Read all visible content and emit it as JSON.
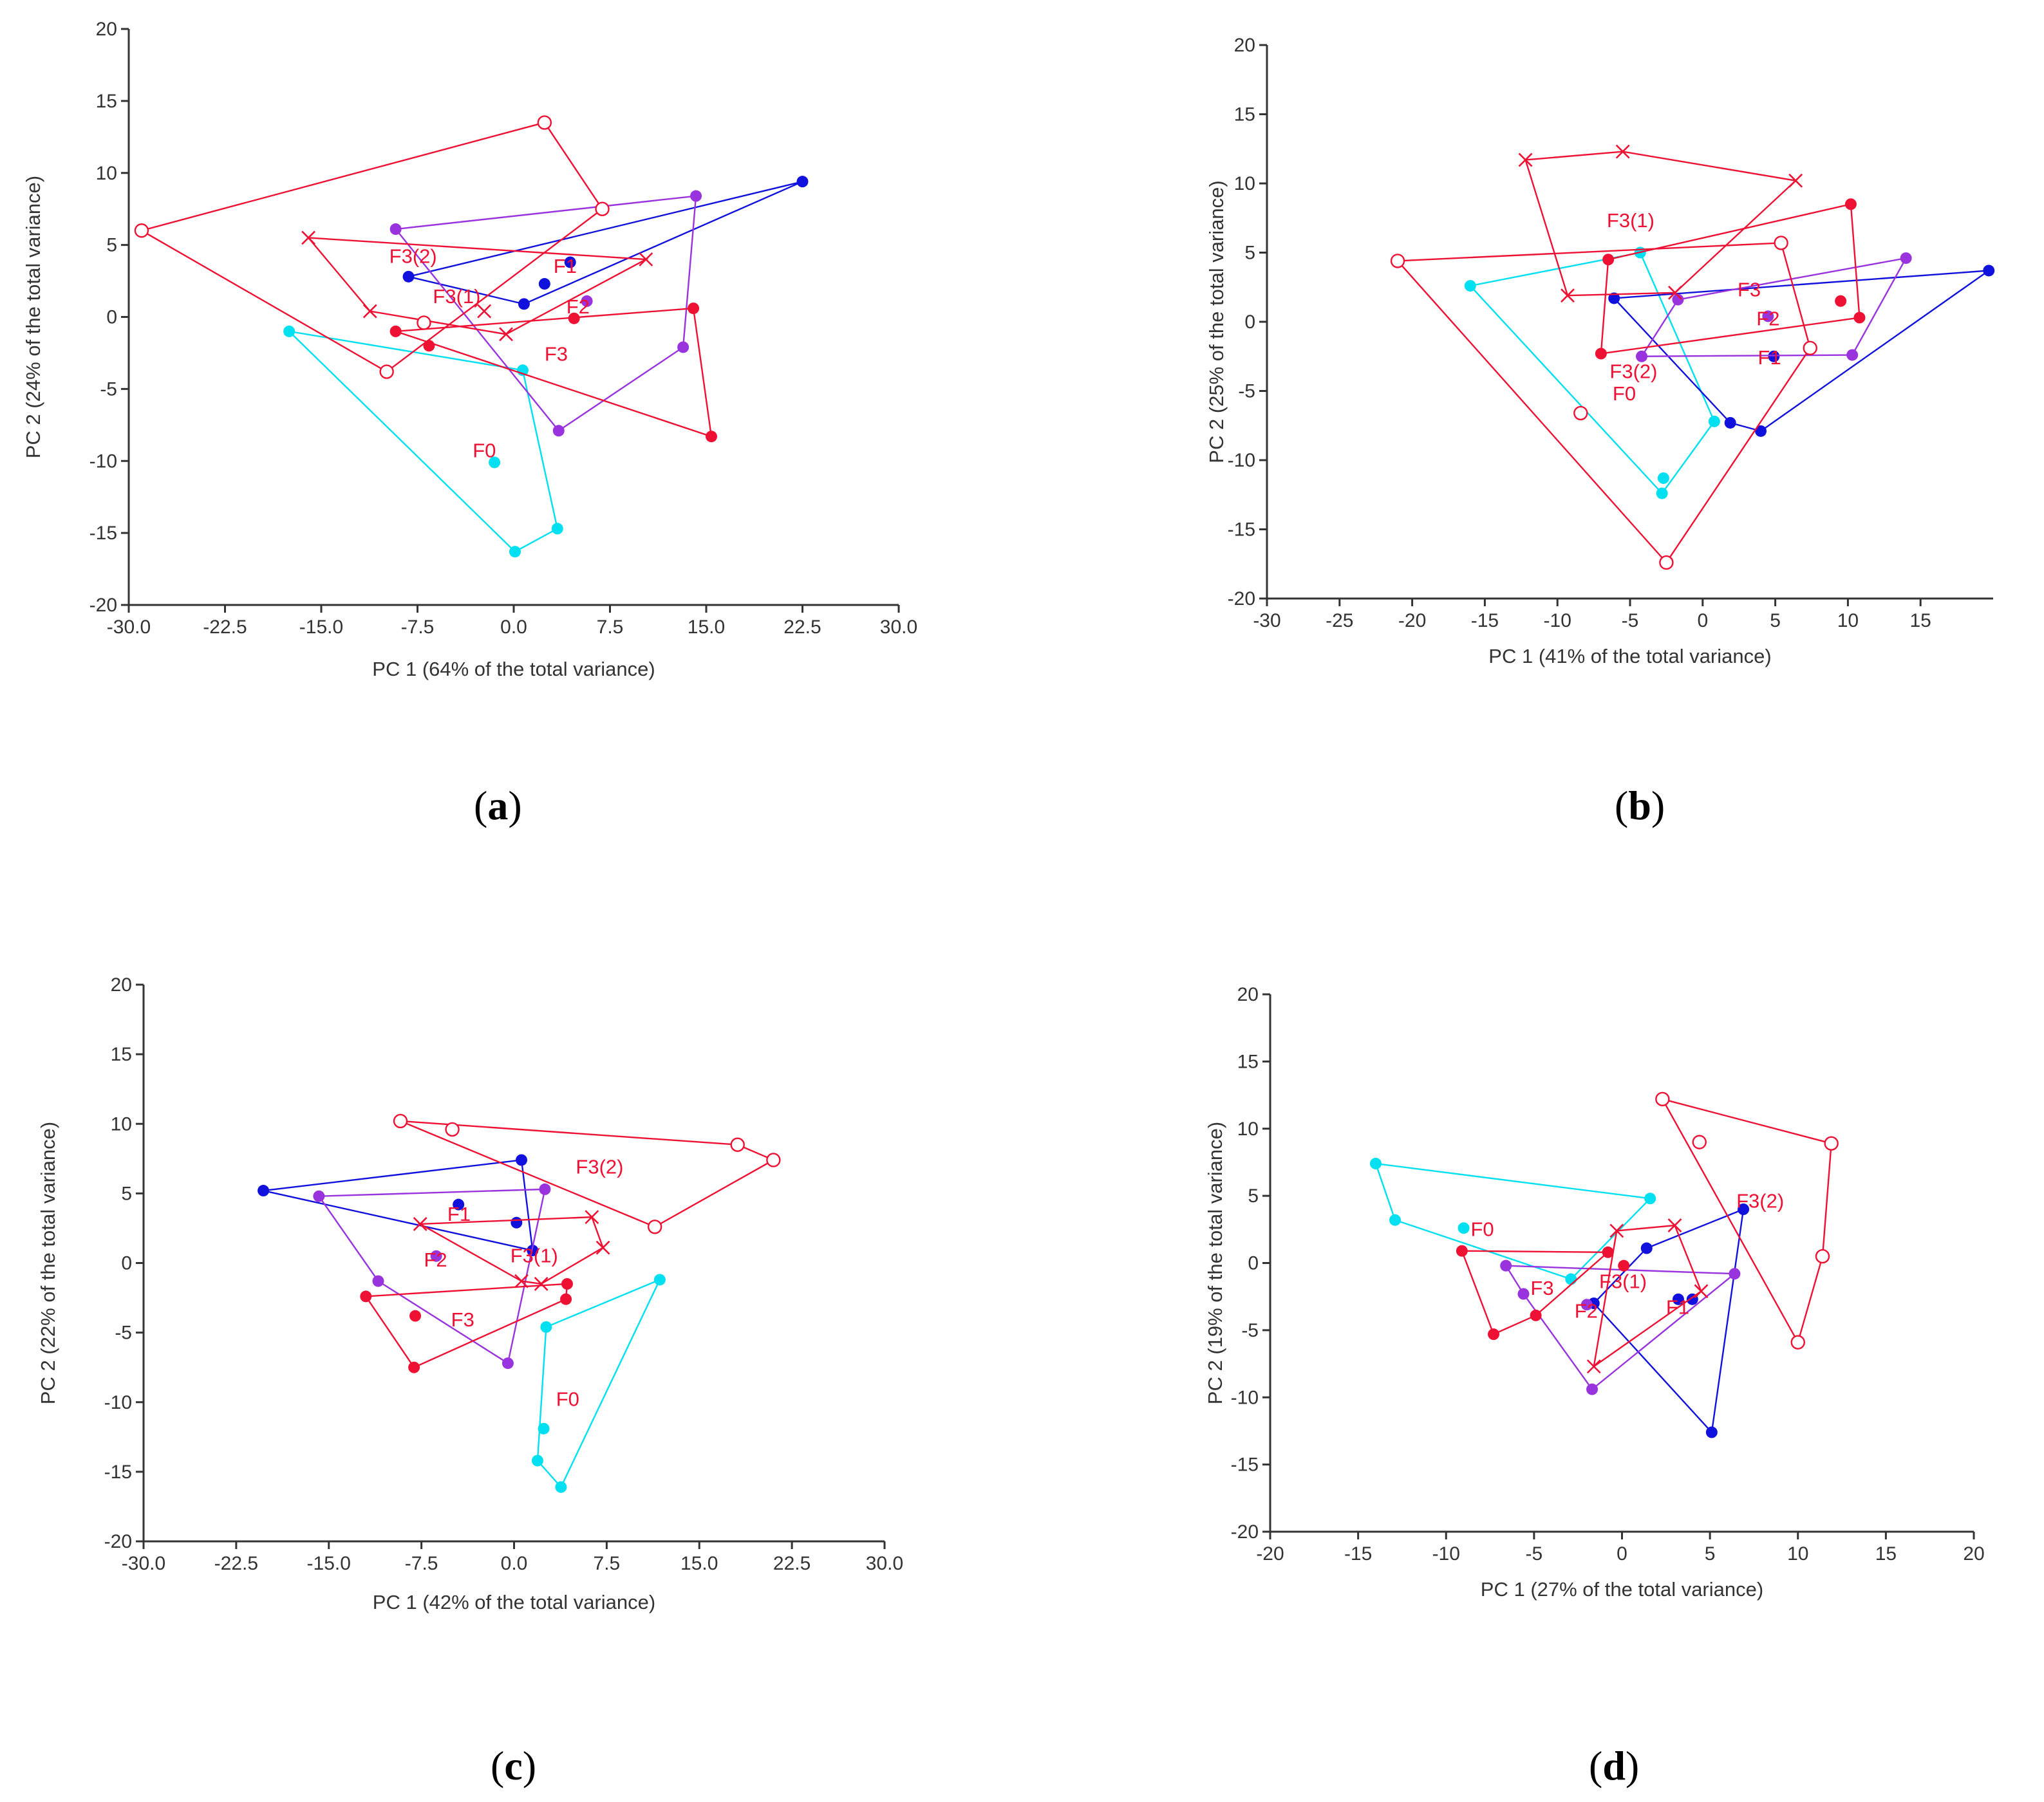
{
  "colors": {
    "cyan": "#00e0f0",
    "red": "#ee1133",
    "purple": "#9933dd",
    "blue": "#1111dd",
    "axis": "#333333"
  },
  "chart_data": [
    {
      "id": "a",
      "type": "scatter",
      "caption_letter": "a",
      "xlabel": "PC 1 (64% of the total variance)",
      "ylabel": "PC 2 (24% of the total variance)",
      "xlim": [
        -30,
        30
      ],
      "ylim": [
        -20,
        20
      ],
      "xticks": [
        -30,
        -22.5,
        -15,
        -7.5,
        0,
        7.5,
        15,
        22.5,
        30
      ],
      "xtick_labels": [
        "-30.0",
        "-22.5",
        "-15.0",
        "-7.5",
        "0.0",
        "7.5",
        "15.0",
        "22.5",
        "30.0"
      ],
      "yticks": [
        -20,
        -15,
        -10,
        -5,
        0,
        5,
        10,
        15,
        20
      ],
      "ytick_labels": [
        "-20",
        "-15",
        "-10",
        "-5",
        "0",
        "5",
        "10",
        "15",
        "20"
      ],
      "series": [
        {
          "name": "F0",
          "color": "cyan",
          "marker": "dot",
          "hull": [
            [
              -17.5,
              -1
            ],
            [
              0.7,
              -3.7
            ],
            [
              3.4,
              -14.7
            ],
            [
              0.1,
              -16.3
            ]
          ],
          "extra": [
            [
              -1.5,
              -10.1
            ]
          ]
        },
        {
          "name": "F1",
          "color": "blue",
          "marker": "dot",
          "hull": [
            [
              -8.2,
              2.8
            ],
            [
              0.8,
              0.9
            ],
            [
              22.5,
              9.4
            ]
          ],
          "extra": [
            [
              2.4,
              2.3
            ],
            [
              4.4,
              3.8
            ]
          ]
        },
        {
          "name": "F2",
          "color": "purple",
          "marker": "dot",
          "hull": [
            [
              -9.2,
              6.1
            ],
            [
              14.2,
              8.4
            ],
            [
              13.2,
              -2.1
            ],
            [
              3.5,
              -7.9
            ]
          ],
          "extra": [
            [
              5.7,
              1.1
            ]
          ]
        },
        {
          "name": "F3",
          "color": "red",
          "marker": "dot",
          "hull": [
            [
              -9.2,
              -1
            ],
            [
              14,
              0.6
            ],
            [
              15.4,
              -8.3
            ]
          ],
          "extra": [
            [
              -6.6,
              -2
            ],
            [
              4.7,
              -0.1
            ]
          ]
        },
        {
          "name": "F3(1)",
          "color": "red",
          "marker": "x",
          "hull": [
            [
              -16,
              5.5
            ],
            [
              10.3,
              4
            ],
            [
              -0.6,
              -1.2
            ],
            [
              -11.2,
              0.4
            ]
          ],
          "extra": [
            [
              -2.3,
              0.4
            ]
          ]
        },
        {
          "name": "F3(2)",
          "color": "red",
          "marker": "o",
          "hull": [
            [
              -29,
              6
            ],
            [
              2.4,
              13.5
            ],
            [
              6.9,
              7.5
            ],
            [
              -9.9,
              -3.8
            ]
          ],
          "extra": [
            [
              -7,
              -0.4
            ]
          ]
        }
      ],
      "labels": [
        {
          "text": "F0",
          "at": [
            -3.2,
            -9.3
          ]
        },
        {
          "text": "F1",
          "at": [
            3.1,
            3.5
          ]
        },
        {
          "text": "F2",
          "at": [
            4.1,
            0.7
          ]
        },
        {
          "text": "F3",
          "at": [
            2.4,
            -2.6
          ]
        },
        {
          "text": "F3(1)",
          "at": [
            -6.3,
            1.4
          ]
        },
        {
          "text": "F3(2)",
          "at": [
            -9.7,
            4.2
          ]
        }
      ]
    },
    {
      "id": "b",
      "type": "scatter",
      "caption_letter": "b",
      "xlabel": "PC 1 (41% of the total variance)",
      "ylabel": "PC 2 (25% of the total variance)",
      "xlim": [
        -30,
        20
      ],
      "ylim": [
        -20,
        20
      ],
      "xticks": [
        -30,
        -25,
        -20,
        -15,
        -10,
        -5,
        0,
        5,
        10,
        15
      ],
      "xtick_labels": [
        "-30",
        "-25",
        "-20",
        "-15",
        "-10",
        "-5",
        "0",
        "5",
        "10",
        "15"
      ],
      "yticks": [
        -20,
        -15,
        -10,
        -5,
        0,
        5,
        10,
        15,
        20
      ],
      "ytick_labels": [
        "-20",
        "-15",
        "-10",
        "-5",
        "0",
        "5",
        "10",
        "15",
        "20"
      ],
      "series": [
        {
          "name": "F0",
          "color": "cyan",
          "marker": "dot",
          "hull": [
            [
              -16,
              2.6
            ],
            [
              -4.3,
              5
            ],
            [
              0.8,
              -7.2
            ],
            [
              -2.8,
              -12.4
            ]
          ],
          "extra": [
            [
              -2.7,
              -11.3
            ]
          ]
        },
        {
          "name": "F1",
          "color": "blue",
          "marker": "dot",
          "hull": [
            [
              -6.1,
              1.7
            ],
            [
              19.7,
              3.7
            ],
            [
              4,
              -7.9
            ],
            [
              1.9,
              -7.3
            ]
          ],
          "extra": [
            [
              4.9,
              -2.5
            ]
          ]
        },
        {
          "name": "F2",
          "color": "purple",
          "marker": "dot",
          "hull": [
            [
              -4.2,
              -2.5
            ],
            [
              -1.7,
              1.6
            ],
            [
              14,
              4.6
            ],
            [
              10.3,
              -2.4
            ]
          ],
          "extra": [
            [
              4.5,
              0.4
            ]
          ]
        },
        {
          "name": "F3",
          "color": "red",
          "marker": "dot",
          "hull": [
            [
              -6.5,
              4.5
            ],
            [
              10.2,
              8.5
            ],
            [
              10.8,
              0.3
            ],
            [
              -7,
              -2.3
            ]
          ],
          "extra": [
            [
              9.5,
              1.5
            ]
          ]
        },
        {
          "name": "F3(1)",
          "color": "red",
          "marker": "x",
          "hull": [
            [
              -12.2,
              11.7
            ],
            [
              -5.5,
              12.3
            ],
            [
              6.4,
              10.2
            ],
            [
              -1.9,
              2.1
            ],
            [
              -9.3,
              1.9
            ]
          ],
          "extra": []
        },
        {
          "name": "F3(2)",
          "color": "red",
          "marker": "o",
          "hull": [
            [
              -21,
              4.4
            ],
            [
              5.4,
              5.7
            ],
            [
              7.4,
              -1.9
            ],
            [
              -2.5,
              -17.4
            ]
          ],
          "extra": [
            [
              -8.4,
              -6.6
            ]
          ]
        }
      ],
      "labels": [
        {
          "text": "F0",
          "at": [
            -6.2,
            -5.2
          ]
        },
        {
          "text": "F1",
          "at": [
            3.8,
            -2.6
          ]
        },
        {
          "text": "F2",
          "at": [
            3.7,
            0.2
          ]
        },
        {
          "text": "F3",
          "at": [
            2.4,
            2.3
          ]
        },
        {
          "text": "F3(1)",
          "at": [
            -6.6,
            7.3
          ]
        },
        {
          "text": "F3(2)",
          "at": [
            -6.4,
            -3.6
          ]
        }
      ]
    },
    {
      "id": "c",
      "type": "scatter",
      "caption_letter": "c",
      "xlabel": "PC 1 (42% of the total variance)",
      "ylabel": "PC 2 (22% of the total variance)",
      "xlim": [
        -30,
        30
      ],
      "ylim": [
        -20,
        20
      ],
      "xticks": [
        -30,
        -22.5,
        -15,
        -7.5,
        0,
        7.5,
        15,
        22.5,
        30
      ],
      "xtick_labels": [
        "-30.0",
        "-22.5",
        "-15.0",
        "-7.5",
        "0.0",
        "7.5",
        "15.0",
        "22.5",
        "30.0"
      ],
      "yticks": [
        -20,
        -15,
        -10,
        -5,
        0,
        5,
        10,
        15,
        20
      ],
      "ytick_labels": [
        "-20",
        "-15",
        "-10",
        "-5",
        "0",
        "5",
        "10",
        "15",
        "20"
      ],
      "series": [
        {
          "name": "F0",
          "color": "cyan",
          "marker": "dot",
          "hull": [
            [
              2.6,
              -4.6
            ],
            [
              11.8,
              -1.2
            ],
            [
              3.8,
              -16.1
            ],
            [
              1.9,
              -14.2
            ]
          ],
          "extra": [
            [
              2.4,
              -11.9
            ]
          ]
        },
        {
          "name": "F1",
          "color": "blue",
          "marker": "dot",
          "hull": [
            [
              -20.3,
              5.2
            ],
            [
              0.6,
              7.4
            ],
            [
              1.5,
              0.9
            ]
          ],
          "extra": [
            [
              0.2,
              2.9
            ],
            [
              -4.5,
              4.2
            ]
          ]
        },
        {
          "name": "F2",
          "color": "purple",
          "marker": "dot",
          "hull": [
            [
              -15.8,
              4.8
            ],
            [
              2.5,
              5.3
            ],
            [
              -0.5,
              -7.2
            ],
            [
              -11,
              -1.3
            ]
          ],
          "extra": [
            [
              -6.3,
              0.5
            ]
          ]
        },
        {
          "name": "F3",
          "color": "red",
          "marker": "dot",
          "hull": [
            [
              -12,
              -2.4
            ],
            [
              4.3,
              -1.5
            ],
            [
              4.2,
              -2.6
            ],
            [
              -8.1,
              -7.5
            ]
          ],
          "extra": [
            [
              -8,
              -3.8
            ]
          ]
        },
        {
          "name": "F3(1)",
          "color": "red",
          "marker": "x",
          "hull": [
            [
              -7.6,
              2.8
            ],
            [
              6.3,
              3.3
            ],
            [
              7.2,
              1.1
            ],
            [
              2.2,
              -1.5
            ],
            [
              0.6,
              -1.3
            ]
          ],
          "extra": []
        },
        {
          "name": "F3(2)",
          "color": "red",
          "marker": "o",
          "hull": [
            [
              -9.2,
              10.2
            ],
            [
              18.1,
              8.5
            ],
            [
              21,
              7.4
            ],
            [
              11.4,
              2.6
            ]
          ],
          "extra": [
            [
              -5,
              9.6
            ]
          ]
        }
      ],
      "labels": [
        {
          "text": "F0",
          "at": [
            3.4,
            -9.8
          ]
        },
        {
          "text": "F1",
          "at": [
            -5.4,
            3.5
          ]
        },
        {
          "text": "F2",
          "at": [
            -7.3,
            0.2
          ]
        },
        {
          "text": "F3",
          "at": [
            -5.1,
            -4.1
          ]
        },
        {
          "text": "F3(1)",
          "at": [
            -0.3,
            0.5
          ]
        },
        {
          "text": "F3(2)",
          "at": [
            5,
            6.9
          ]
        }
      ]
    },
    {
      "id": "d",
      "type": "scatter",
      "caption_letter": "d",
      "xlabel": "PC 1 (27% of the total variance)",
      "ylabel": "PC 2 (19% of the total variance)",
      "xlim": [
        -20,
        20
      ],
      "ylim": [
        -20,
        20
      ],
      "xticks": [
        -20,
        -15,
        -10,
        -5,
        0,
        5,
        10,
        15,
        20
      ],
      "xtick_labels": [
        "-20",
        "-15",
        "-10",
        "-5",
        "0",
        "5",
        "10",
        "15",
        "20"
      ],
      "yticks": [
        -20,
        -15,
        -10,
        -5,
        0,
        5,
        10,
        15,
        20
      ],
      "ytick_labels": [
        "-20",
        "-15",
        "-10",
        "-5",
        "0",
        "5",
        "10",
        "15",
        "20"
      ],
      "series": [
        {
          "name": "F0",
          "color": "cyan",
          "marker": "dot",
          "hull": [
            [
              -14,
              7.4
            ],
            [
              1.6,
              4.8
            ],
            [
              -2.9,
              -1.2
            ],
            [
              -12.9,
              3.2
            ]
          ],
          "extra": [
            [
              -9,
              2.6
            ]
          ]
        },
        {
          "name": "F1",
          "color": "blue",
          "marker": "dot",
          "hull": [
            [
              1.4,
              1.1
            ],
            [
              6.9,
              4
            ],
            [
              5.1,
              -12.6
            ],
            [
              -1.6,
              -3
            ]
          ],
          "extra": [
            [
              3.2,
              -2.7
            ],
            [
              4,
              -2.7
            ]
          ]
        },
        {
          "name": "F2",
          "color": "purple",
          "marker": "dot",
          "hull": [
            [
              -6.6,
              -0.2
            ],
            [
              6.4,
              -0.8
            ],
            [
              -1.7,
              -9.4
            ],
            [
              -5.6,
              -2.3
            ]
          ],
          "extra": [
            [
              -2,
              -3.1
            ]
          ]
        },
        {
          "name": "F3",
          "color": "red",
          "marker": "dot",
          "hull": [
            [
              -9.1,
              0.9
            ],
            [
              -0.8,
              0.8
            ],
            [
              -4.9,
              -3.9
            ],
            [
              -7.3,
              -5.3
            ]
          ],
          "extra": [
            [
              0.1,
              -0.2
            ]
          ]
        },
        {
          "name": "F3(1)",
          "color": "red",
          "marker": "x",
          "hull": [
            [
              -0.3,
              2.4
            ],
            [
              3,
              2.8
            ],
            [
              4.5,
              -2.1
            ],
            [
              -1.6,
              -7.7
            ]
          ],
          "extra": []
        },
        {
          "name": "F3(2)",
          "color": "red",
          "marker": "o",
          "hull": [
            [
              2.3,
              12.2
            ],
            [
              11.9,
              8.9
            ],
            [
              11.4,
              0.5
            ],
            [
              10,
              -5.9
            ]
          ],
          "extra": [
            [
              4.4,
              9
            ]
          ]
        }
      ],
      "labels": [
        {
          "text": "F0",
          "at": [
            -8.6,
            2.5
          ]
        },
        {
          "text": "F1",
          "at": [
            2.5,
            -3.3
          ]
        },
        {
          "text": "F2",
          "at": [
            -2.7,
            -3.6
          ]
        },
        {
          "text": "F3",
          "at": [
            -5.2,
            -1.9
          ]
        },
        {
          "text": "F3(1)",
          "at": [
            -1.3,
            -1.4
          ]
        },
        {
          "text": "F3(2)",
          "at": [
            6.5,
            4.6
          ]
        }
      ]
    }
  ]
}
